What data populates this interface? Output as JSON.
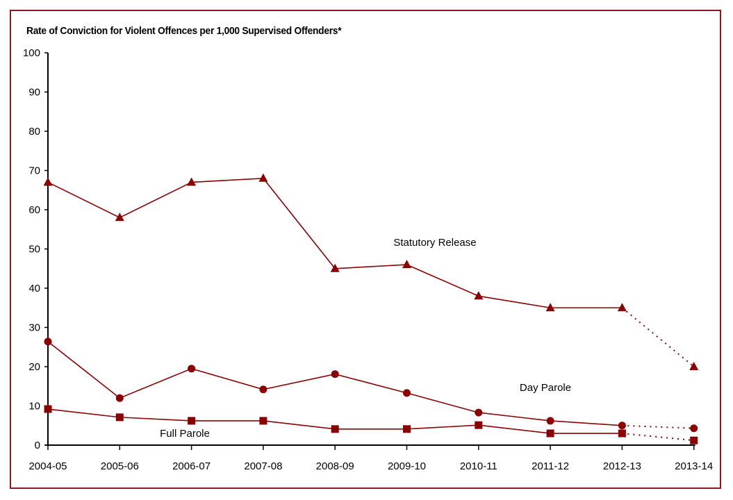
{
  "chart_data": {
    "type": "line",
    "title": "Rate of Conviction for Violent Offences per 1,000 Supervised Offenders*",
    "xlabel": "",
    "ylabel": "",
    "ylim": [
      0,
      100
    ],
    "yticks": [
      0,
      10,
      20,
      30,
      40,
      50,
      60,
      70,
      80,
      90,
      100
    ],
    "grid": false,
    "categories": [
      "2004-05",
      "2005-06",
      "2006-07",
      "2007-08",
      "2008-09",
      "2009-10",
      "2010-11",
      "2011-12",
      "2012-13",
      "2013-14"
    ],
    "line_color": "#8b0000",
    "last_segment_style": "dotted",
    "series": [
      {
        "name": "Statutory Release",
        "marker": "triangle",
        "values": [
          67,
          58,
          67,
          68,
          45,
          46,
          38,
          35,
          35,
          20
        ]
      },
      {
        "name": "Day Parole",
        "marker": "circle",
        "values": [
          26.4,
          12,
          19.5,
          14.2,
          18.1,
          13.3,
          8.3,
          6.2,
          5,
          4.3
        ]
      },
      {
        "name": "Full Parole",
        "marker": "square",
        "values": [
          9.2,
          7.1,
          6.2,
          6.2,
          4.1,
          4.1,
          5.1,
          3,
          3,
          1.2
        ]
      }
    ]
  }
}
